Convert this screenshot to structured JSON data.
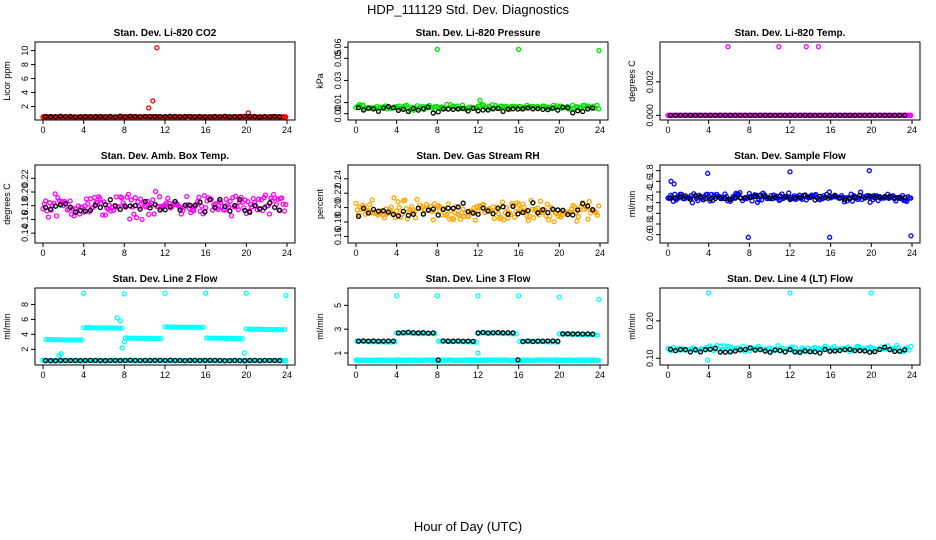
{
  "title": "HDP_111129  Std. Dev. Diagnostics",
  "xlabel": "Hour of Day (UTC)",
  "colors": {
    "red": "#ff0000",
    "green": "#00e000",
    "magenta": "#ff00ff",
    "orange": "#ffa500",
    "blue": "#0000ff",
    "cyan": "#00ffff",
    "black": "#000000"
  },
  "chart_data": [
    {
      "type": "scatter",
      "title": "Stan. Dev. Li-820 CO2",
      "ylabel": "Licor ppm",
      "color": "red",
      "xlim": [
        0,
        24
      ],
      "ylim": [
        0.5,
        10.8
      ],
      "xticks": [
        0,
        4,
        8,
        12,
        16,
        20,
        24
      ],
      "yticks": [
        2,
        4,
        6,
        8,
        10
      ],
      "ytick_labels": [
        "2",
        "4",
        "6",
        "8",
        "10"
      ],
      "base": 0.5,
      "noise": 0.12,
      "outliers": [
        [
          11.2,
          10.4
        ],
        [
          10.8,
          2.8
        ],
        [
          10.4,
          1.8
        ],
        [
          20.2,
          1.1
        ]
      ],
      "black_base": 0.55,
      "black_noise": 0.08
    },
    {
      "type": "scatter",
      "title": "Stan. Dev. Li-820 Pressure",
      "ylabel": "kPa",
      "color": "green",
      "xlim": [
        0,
        24
      ],
      "ylim": [
        -0.003,
        0.062
      ],
      "xticks": [
        0,
        4,
        8,
        12,
        16,
        20,
        24
      ],
      "yticks": [
        0.0,
        0.01,
        0.03,
        0.05,
        0.06
      ],
      "ytick_labels": [
        "0.00",
        "0.01",
        "0.03",
        "0.05",
        "0.06"
      ],
      "base": 0.006,
      "noise": 0.003,
      "outliers": [
        [
          8.0,
          0.058
        ],
        [
          16.0,
          0.058
        ],
        [
          23.9,
          0.057
        ],
        [
          12.2,
          0.012
        ]
      ],
      "black_base": 0.004,
      "black_noise": 0.004
    },
    {
      "type": "scatter",
      "title": "Stan. Dev. Li-820 Temp.",
      "ylabel": "degrees C",
      "color": "magenta",
      "xlim": [
        0,
        24
      ],
      "ylim": [
        -0.0001,
        0.0042
      ],
      "xticks": [
        0,
        4,
        8,
        12,
        16,
        20,
        24
      ],
      "yticks": [
        0.0,
        0.002
      ],
      "ytick_labels": [
        "0.000",
        "0.002"
      ],
      "base": 0.0,
      "noise": 0.0,
      "outliers": [
        [
          5.9,
          0.0041
        ],
        [
          10.9,
          0.0041
        ],
        [
          14.8,
          0.0041
        ],
        [
          13.6,
          0.0041
        ]
      ],
      "black_base": 0.0,
      "black_noise": 0.0
    },
    {
      "type": "scatter",
      "title": "Stan. Dev. Amb. Box Temp.",
      "ylabel": "degrees C",
      "color": "magenta",
      "xlim": [
        0,
        24
      ],
      "ylim": [
        0.13,
        0.235
      ],
      "xticks": [
        0,
        4,
        8,
        12,
        16,
        20,
        24
      ],
      "yticks": [
        0.14,
        0.16,
        0.18,
        0.2,
        0.22
      ],
      "ytick_labels": [
        "0.14",
        "0.16",
        "0.18",
        "0.20",
        "0.22"
      ],
      "base": 0.18,
      "noise": 0.024,
      "outliers": [],
      "black_base": 0.178,
      "black_noise": 0.015
    },
    {
      "type": "scatter",
      "title": "Stan. Dev. Gas Stream RH",
      "ylabel": "percent",
      "color": "orange",
      "xlim": [
        0,
        24
      ],
      "ylim": [
        0.155,
        0.255
      ],
      "xticks": [
        0,
        4,
        8,
        12,
        16,
        20,
        24
      ],
      "yticks": [
        0.16,
        0.18,
        0.2,
        0.22,
        0.24
      ],
      "ytick_labels": [
        "0.16",
        "0.18",
        "0.20",
        "0.22",
        "0.24"
      ],
      "base": 0.195,
      "noise": 0.022,
      "outliers": [],
      "black_base": 0.196,
      "black_noise": 0.015
    },
    {
      "type": "scatter",
      "title": "Stan. Dev. Sample Flow",
      "ylabel": "ml/min",
      "color": "blue",
      "xlim": [
        0,
        24
      ],
      "ylim": [
        0.5,
        1.85
      ],
      "xticks": [
        0,
        4,
        8,
        12,
        16,
        20,
        24
      ],
      "yticks": [
        0.6,
        0.8,
        1.0,
        1.2,
        1.4,
        1.6,
        1.8
      ],
      "ytick_labels": [
        "0.6",
        "0.8",
        "1.0",
        "1.2",
        "1.4",
        "1.6",
        "1.8"
      ],
      "base": 1.3,
      "noise": 0.12,
      "outliers": [
        [
          7.9,
          0.55
        ],
        [
          15.9,
          0.55
        ],
        [
          23.9,
          0.58
        ],
        [
          3.9,
          1.75
        ],
        [
          12.0,
          1.78
        ],
        [
          19.8,
          1.8
        ],
        [
          0.3,
          1.6
        ],
        [
          0.6,
          1.55
        ]
      ],
      "black_base": 1.3,
      "black_noise": 0.06
    },
    {
      "type": "scatter",
      "title": "Stan. Dev. Line 2 Flow",
      "ylabel": "ml/min",
      "color": "cyan",
      "xlim": [
        0,
        24
      ],
      "ylim": [
        0.3,
        9.8
      ],
      "xticks": [
        0,
        4,
        8,
        12,
        16,
        20,
        24
      ],
      "yticks": [
        2,
        4,
        6,
        8
      ],
      "ytick_labels": [
        "2",
        "4",
        "6",
        "8"
      ],
      "base": 0.5,
      "noise": 0.05,
      "outliers": [
        [
          4.0,
          9.5
        ],
        [
          8.0,
          9.4
        ],
        [
          12.0,
          9.5
        ],
        [
          16.0,
          9.5
        ],
        [
          20.0,
          9.5
        ],
        [
          23.9,
          9.2
        ],
        [
          7.3,
          6.2
        ],
        [
          7.6,
          5.8
        ],
        [
          8.0,
          3.0
        ],
        [
          7.8,
          2.2
        ],
        [
          1.8,
          1.4
        ],
        [
          1.6,
          1.2
        ],
        [
          19.8,
          1.5
        ]
      ],
      "black_base": 0.5,
      "black_noise": 0.05,
      "segments": [
        [
          0.3,
          3.8,
          3.3
        ],
        [
          4.0,
          7.8,
          4.9
        ],
        [
          8.1,
          11.8,
          3.5
        ],
        [
          12.0,
          15.8,
          5.0
        ],
        [
          16.1,
          19.8,
          3.5
        ],
        [
          20.0,
          23.9,
          4.7
        ]
      ]
    },
    {
      "type": "scatter",
      "title": "Stan. Dev. Line 3 Flow",
      "ylabel": "ml/min",
      "color": "cyan",
      "xlim": [
        0,
        24
      ],
      "ylim": [
        0.25,
        6.2
      ],
      "xticks": [
        0,
        4,
        8,
        12,
        16,
        20,
        24
      ],
      "yticks": [
        1,
        3,
        5
      ],
      "ytick_labels": [
        "1",
        "3",
        "5"
      ],
      "base": 0.4,
      "noise": 0.05,
      "outliers": [
        [
          4.0,
          5.8
        ],
        [
          8.0,
          5.8
        ],
        [
          12.0,
          5.8
        ],
        [
          16.0,
          5.8
        ],
        [
          20.0,
          5.7
        ],
        [
          23.9,
          5.5
        ],
        [
          12.0,
          1.0
        ]
      ],
      "black_base": 0.4,
      "black_noise": 0.05,
      "segments": [
        [
          0.1,
          3.9,
          2.0
        ],
        [
          4.0,
          7.9,
          2.7
        ],
        [
          8.1,
          11.9,
          2.0
        ],
        [
          12.0,
          15.9,
          2.7
        ],
        [
          16.1,
          19.9,
          2.0
        ],
        [
          20.0,
          23.9,
          2.6
        ]
      ]
    },
    {
      "type": "scatter",
      "title": "Stan. Dev. Line 4 (LT) Flow",
      "ylabel": "ml/min",
      "color": "cyan",
      "xlim": [
        0,
        24
      ],
      "ylim": [
        0.09,
        0.28
      ],
      "xticks": [
        0,
        4,
        8,
        12,
        16,
        20,
        24
      ],
      "yticks": [
        0.1,
        0.2
      ],
      "ytick_labels": [
        "0.10",
        "0.20"
      ],
      "base": 0.125,
      "noise": 0.012,
      "outliers": [
        [
          4.0,
          0.275
        ],
        [
          12.0,
          0.275
        ],
        [
          20.0,
          0.275
        ],
        [
          3.9,
          0.095
        ]
      ],
      "black_base": 0.122,
      "black_noise": 0.01
    }
  ]
}
